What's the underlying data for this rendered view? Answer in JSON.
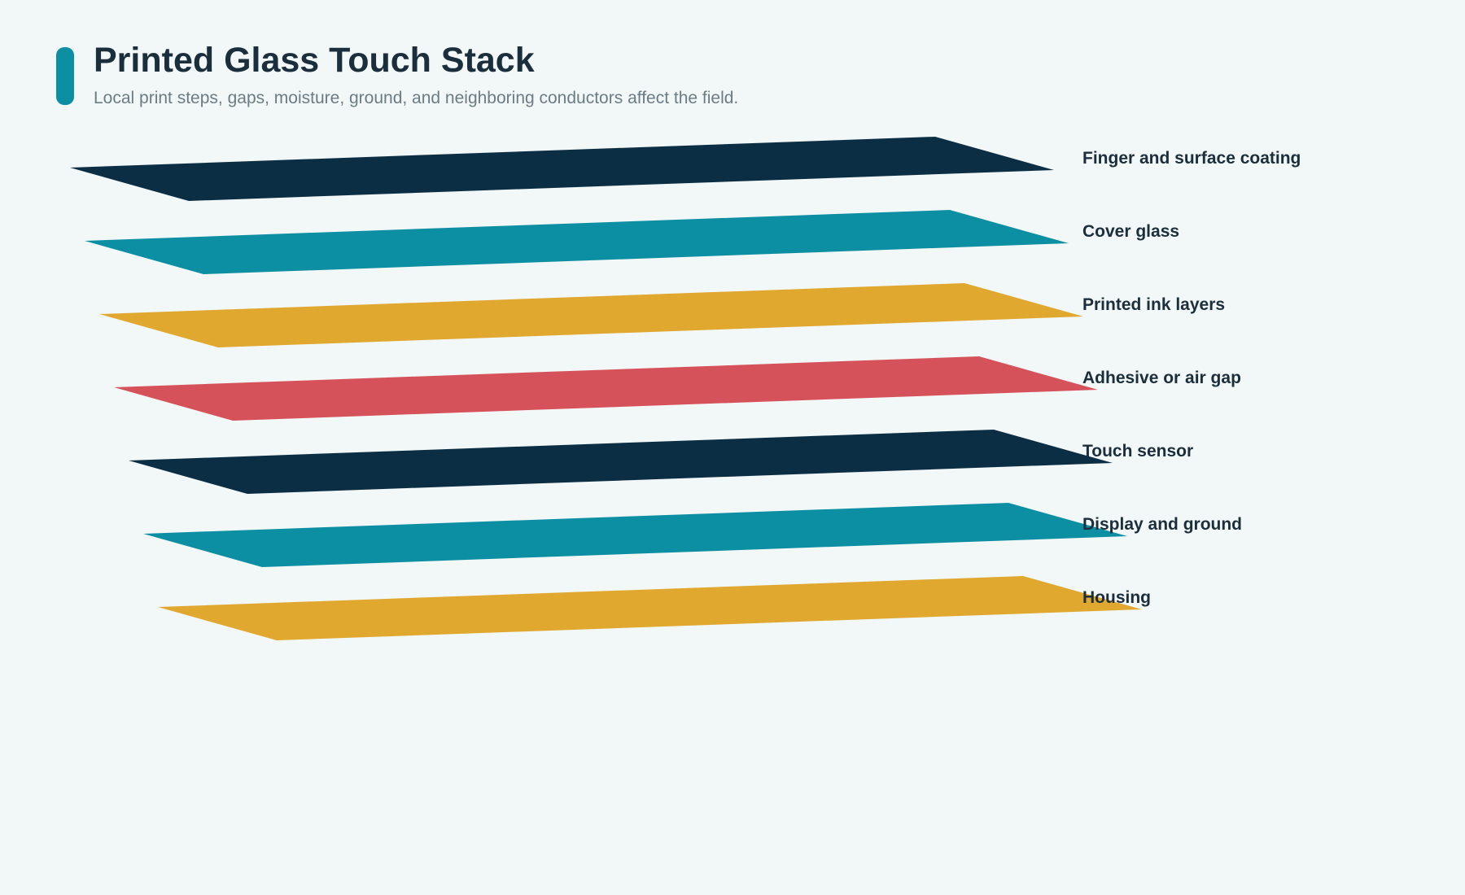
{
  "header": {
    "title": "Printed Glass Touch Stack",
    "subtitle": "Local print steps, gaps, moisture, ground, and neighboring conductors affect the field."
  },
  "colors": {
    "background": "#f2f7f7",
    "accent": "#0c8fa3",
    "navy": "#0c2e45",
    "teal": "#0c8fa3",
    "gold": "#e0a82e",
    "red": "#d6525a"
  },
  "layers": [
    {
      "label": "Finger and surface coating",
      "color": "#0c2e45"
    },
    {
      "label": "Cover glass",
      "color": "#0c8fa3"
    },
    {
      "label": "Printed ink layers",
      "color": "#e0a82e"
    },
    {
      "label": "Adhesive or air gap",
      "color": "#d6525a"
    },
    {
      "label": "Touch sensor",
      "color": "#0c2e45"
    },
    {
      "label": "Display and ground",
      "color": "#0c8fa3"
    },
    {
      "label": "Housing",
      "color": "#e0a82e"
    }
  ]
}
